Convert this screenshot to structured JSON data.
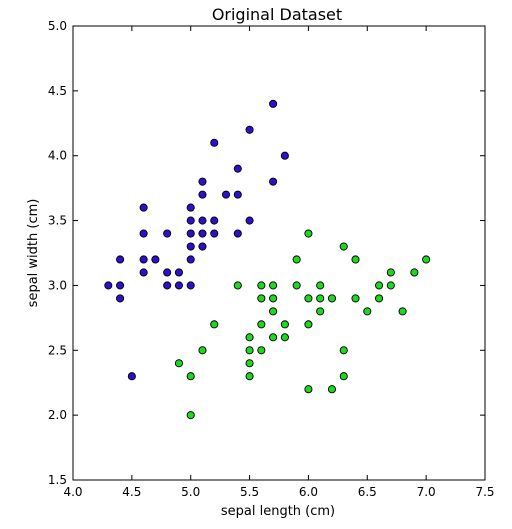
{
  "chart_data": {
    "type": "scatter",
    "title": "Original Dataset",
    "xlabel": "sepal length (cm)",
    "ylabel": "sepal width (cm)",
    "xlim": [
      4.0,
      7.5
    ],
    "ylim": [
      1.5,
      5.0
    ],
    "x_ticks": [
      4.0,
      4.5,
      5.0,
      5.5,
      6.0,
      6.5,
      7.0,
      7.5
    ],
    "y_ticks": [
      1.5,
      2.0,
      2.5,
      3.0,
      3.5,
      4.0,
      4.5,
      5.0
    ],
    "x_tick_labels": [
      "4.0",
      "4.5",
      "5.0",
      "5.5",
      "6.0",
      "6.5",
      "7.0",
      "7.5"
    ],
    "y_tick_labels": [
      "1.5",
      "2.0",
      "2.5",
      "3.0",
      "3.5",
      "4.0",
      "4.5",
      "5.0"
    ],
    "grid": false,
    "series": [
      {
        "color": "#2b10cc",
        "points": [
          [
            4.3,
            3.0
          ],
          [
            4.4,
            3.0
          ],
          [
            4.4,
            3.2
          ],
          [
            4.4,
            2.9
          ],
          [
            4.5,
            2.3
          ],
          [
            4.6,
            3.6
          ],
          [
            4.6,
            3.4
          ],
          [
            4.6,
            3.2
          ],
          [
            4.6,
            3.1
          ],
          [
            4.7,
            3.2
          ],
          [
            4.8,
            3.4
          ],
          [
            4.8,
            3.1
          ],
          [
            4.8,
            3.0
          ],
          [
            4.9,
            3.1
          ],
          [
            4.9,
            3.0
          ],
          [
            5.0,
            3.6
          ],
          [
            5.0,
            3.5
          ],
          [
            5.0,
            3.4
          ],
          [
            5.0,
            3.3
          ],
          [
            5.0,
            3.2
          ],
          [
            5.0,
            3.0
          ],
          [
            5.1,
            3.8
          ],
          [
            5.1,
            3.7
          ],
          [
            5.1,
            3.5
          ],
          [
            5.1,
            3.4
          ],
          [
            5.1,
            3.3
          ],
          [
            5.2,
            4.1
          ],
          [
            5.2,
            3.5
          ],
          [
            5.2,
            3.4
          ],
          [
            5.3,
            3.7
          ],
          [
            5.4,
            3.9
          ],
          [
            5.4,
            3.7
          ],
          [
            5.4,
            3.4
          ],
          [
            5.5,
            4.2
          ],
          [
            5.5,
            3.5
          ],
          [
            5.7,
            4.4
          ],
          [
            5.7,
            3.8
          ],
          [
            5.8,
            4.0
          ]
        ]
      },
      {
        "color": "#1ed81e",
        "points": [
          [
            4.9,
            2.4
          ],
          [
            5.0,
            2.3
          ],
          [
            5.0,
            2.0
          ],
          [
            5.1,
            2.5
          ],
          [
            5.2,
            2.7
          ],
          [
            5.4,
            3.0
          ],
          [
            5.5,
            2.6
          ],
          [
            5.5,
            2.5
          ],
          [
            5.5,
            2.4
          ],
          [
            5.5,
            2.3
          ],
          [
            5.6,
            3.0
          ],
          [
            5.6,
            2.9
          ],
          [
            5.6,
            2.7
          ],
          [
            5.6,
            2.5
          ],
          [
            5.7,
            3.0
          ],
          [
            5.7,
            2.9
          ],
          [
            5.7,
            2.8
          ],
          [
            5.7,
            2.6
          ],
          [
            5.8,
            2.7
          ],
          [
            5.8,
            2.6
          ],
          [
            5.9,
            3.2
          ],
          [
            5.9,
            3.0
          ],
          [
            6.0,
            3.4
          ],
          [
            6.0,
            2.9
          ],
          [
            6.0,
            2.7
          ],
          [
            6.0,
            2.2
          ],
          [
            6.1,
            3.0
          ],
          [
            6.1,
            2.9
          ],
          [
            6.1,
            2.8
          ],
          [
            6.2,
            2.9
          ],
          [
            6.2,
            2.2
          ],
          [
            6.3,
            3.3
          ],
          [
            6.3,
            2.5
          ],
          [
            6.3,
            2.3
          ],
          [
            6.4,
            3.2
          ],
          [
            6.4,
            2.9
          ],
          [
            6.5,
            2.8
          ],
          [
            6.6,
            3.0
          ],
          [
            6.6,
            2.9
          ],
          [
            6.7,
            3.1
          ],
          [
            6.7,
            3.0
          ],
          [
            6.8,
            2.8
          ],
          [
            6.9,
            3.1
          ],
          [
            7.0,
            3.2
          ]
        ]
      }
    ]
  }
}
